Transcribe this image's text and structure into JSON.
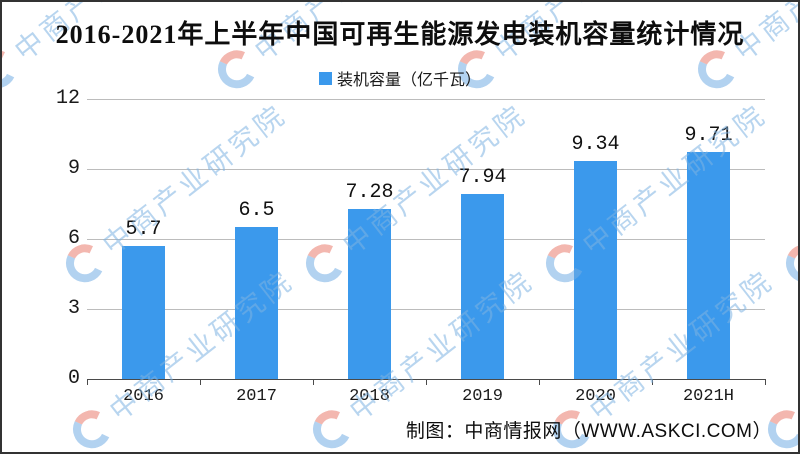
{
  "title": "2016-2021年上半年中国可再生能源发电装机容量统计情况",
  "legend": {
    "label": "装机容量（亿千瓦）",
    "marker_color": "#3B99EC"
  },
  "footer": {
    "credit": "制图：中商情报网（WWW.ASKCI.COM）"
  },
  "watermark": {
    "text": "中商产业研究院"
  },
  "chart_data": {
    "type": "bar",
    "title": "2016-2021年上半年中国可再生能源发电装机容量统计情况",
    "categories": [
      "2016",
      "2017",
      "2018",
      "2019",
      "2020",
      "2021H"
    ],
    "series": [
      {
        "name": "装机容量（亿千瓦）",
        "values": [
          5.7,
          6.5,
          7.28,
          7.94,
          9.34,
          9.71
        ]
      }
    ],
    "value_labels": [
      "5.7",
      "6.5",
      "7.28",
      "7.94",
      "9.34",
      "9.71"
    ],
    "xlabel": "",
    "ylabel": "",
    "ylim": [
      0,
      12
    ],
    "yticks": [
      0,
      3,
      6,
      9,
      12
    ],
    "bar_color": "#3B99EC",
    "grid": true,
    "legend_position": "top"
  }
}
